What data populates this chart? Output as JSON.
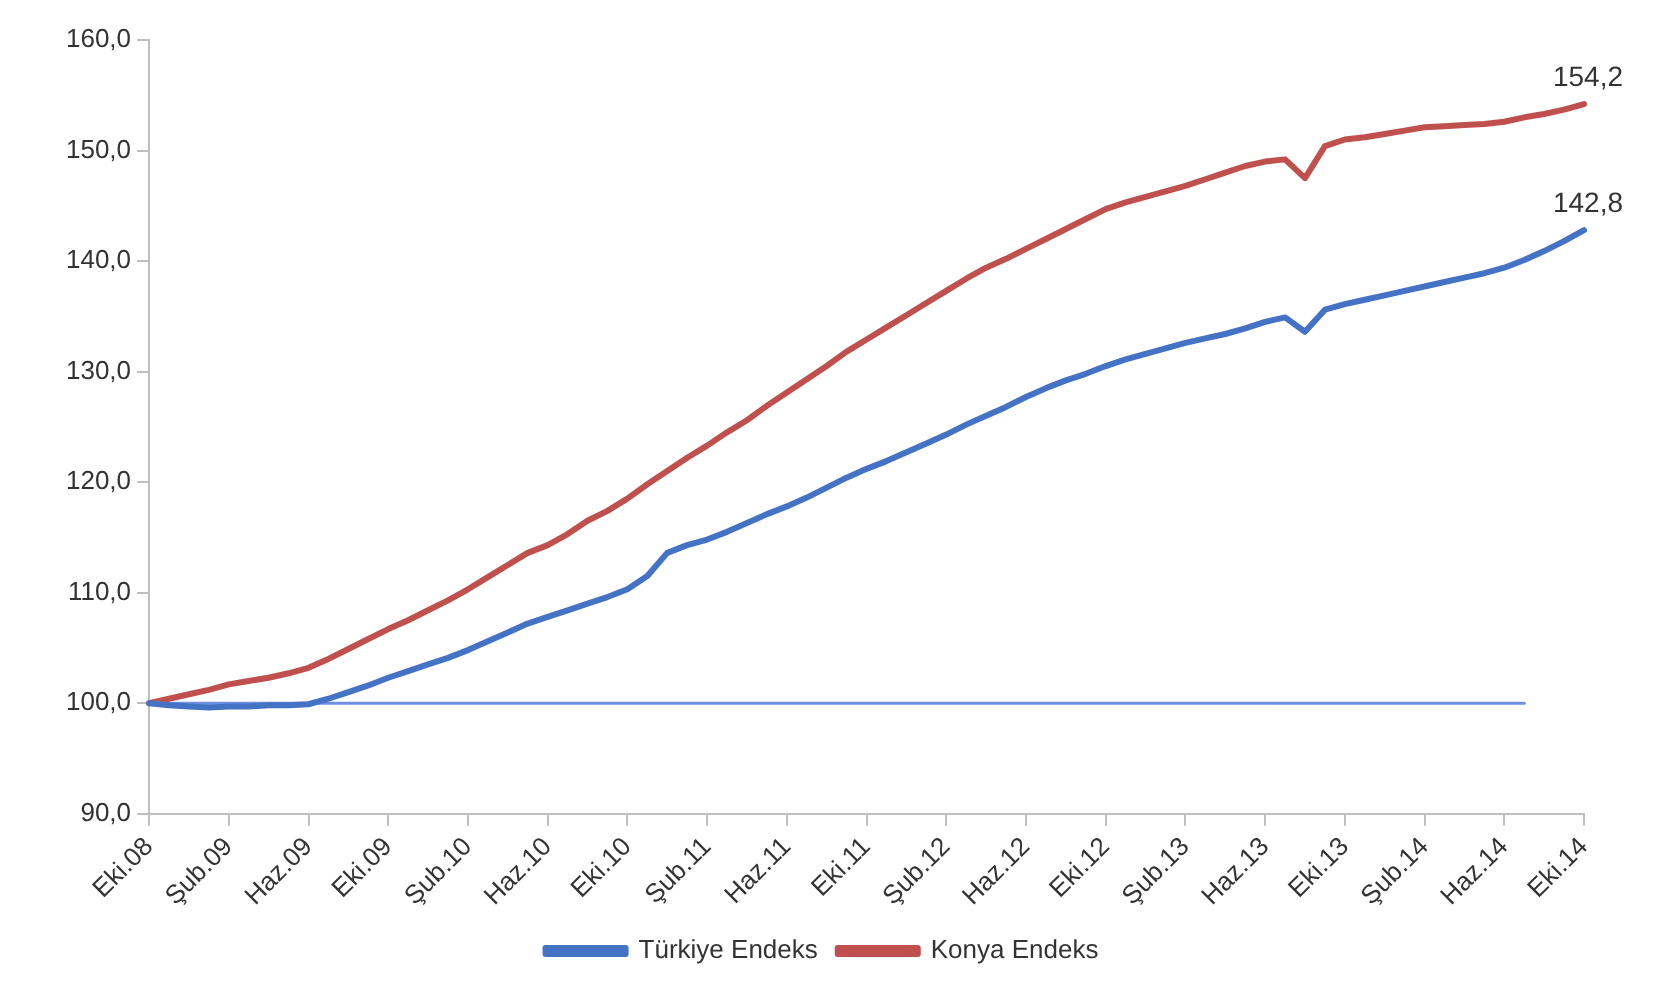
{
  "chart_data": {
    "type": "line",
    "categories": [
      "Eki.08",
      null,
      null,
      null,
      "Şub.09",
      null,
      null,
      null,
      "Haz.09",
      null,
      null,
      null,
      "Eki.09",
      null,
      null,
      null,
      "Şub.10",
      null,
      null,
      null,
      "Haz.10",
      null,
      null,
      null,
      "Eki.10",
      null,
      null,
      null,
      "Şub.11",
      null,
      null,
      null,
      "Haz.11",
      null,
      null,
      null,
      "Eki.11",
      null,
      null,
      null,
      "Şub.12",
      null,
      null,
      null,
      "Haz.12",
      null,
      null,
      null,
      "Eki.12",
      null,
      null,
      null,
      "Şub.13",
      null,
      null,
      null,
      "Haz.13",
      null,
      null,
      null,
      "Eki.13",
      null,
      null,
      null,
      "Şub.14",
      null,
      null,
      null,
      "Haz.14",
      null,
      null,
      null,
      "Eki.14"
    ],
    "series": [
      {
        "name": "Türkiye Endeks",
        "color": "#4472c4",
        "values": [
          100,
          99.8,
          99.7,
          99.6,
          99.7,
          99.7,
          99.8,
          99.8,
          99.9,
          100.4,
          101.0,
          101.6,
          102.3,
          102.9,
          103.5,
          104.1,
          104.8,
          105.6,
          106.4,
          107.2,
          107.8,
          108.4,
          109.0,
          109.6,
          110.3,
          111.5,
          113.6,
          114.3,
          114.8,
          115.5,
          116.3,
          117.1,
          117.8,
          118.6,
          119.5,
          120.4,
          121.2,
          121.9,
          122.7,
          123.5,
          124.3,
          125.2,
          126.0,
          126.8,
          127.7,
          128.5,
          129.2,
          129.8,
          130.5,
          131.1,
          131.6,
          132.1,
          132.6,
          133.0,
          133.4,
          133.9,
          134.5,
          134.9,
          133.6,
          135.6,
          136.1,
          136.5,
          136.9,
          137.3,
          137.7,
          138.1,
          138.5,
          138.9,
          139.4,
          140.1,
          140.9,
          141.8,
          142.8
        ]
      },
      {
        "name": "Konya Endeks",
        "color": "#c0504d",
        "values": [
          100,
          100.4,
          100.8,
          101.2,
          101.7,
          102.0,
          102.3,
          102.7,
          103.2,
          104.0,
          104.9,
          105.8,
          106.7,
          107.5,
          108.4,
          109.3,
          110.3,
          111.4,
          112.5,
          113.6,
          114.3,
          115.3,
          116.5,
          117.4,
          118.5,
          119.8,
          121.0,
          122.2,
          123.3,
          124.5,
          125.6,
          126.9,
          128.1,
          129.3,
          130.5,
          131.8,
          132.9,
          134.0,
          135.1,
          136.2,
          137.3,
          138.4,
          139.4,
          140.2,
          141.1,
          142.0,
          142.9,
          143.8,
          144.7,
          145.3,
          145.8,
          146.3,
          146.8,
          147.4,
          148.0,
          148.6,
          149.0,
          149.2,
          147.5,
          150.4,
          151.0,
          151.2,
          151.5,
          151.8,
          152.1,
          152.2,
          152.3,
          152.4,
          152.6,
          153.0,
          153.3,
          153.7,
          154.2
        ]
      },
      {
        "color": "#6f8fe0",
        "values": [
          100,
          100,
          100,
          100,
          100,
          100,
          100,
          100,
          100,
          100,
          100,
          100,
          100,
          100,
          100,
          100,
          100,
          100,
          100,
          100,
          100,
          100,
          100,
          100,
          100,
          100,
          100,
          100,
          100,
          100,
          100,
          100,
          100,
          100,
          100,
          100,
          100,
          100,
          100,
          100,
          100,
          100,
          100,
          100,
          100,
          100,
          100,
          100,
          100,
          100,
          100,
          100,
          100,
          100,
          100,
          100,
          100,
          100,
          100,
          100,
          100,
          100,
          100,
          100,
          100,
          100,
          100,
          100,
          100,
          100,
          null,
          null,
          null
        ]
      }
    ],
    "ylim": [
      90,
      160
    ],
    "yticks": [
      {
        "value": 90,
        "label": "90,0"
      },
      {
        "value": 100,
        "label": "100,0"
      },
      {
        "value": 110,
        "label": "110,0"
      },
      {
        "value": 120,
        "label": "120,0"
      },
      {
        "value": 130,
        "label": "130,0"
      },
      {
        "value": 140,
        "label": "140,0"
      },
      {
        "value": 150,
        "label": "150,0"
      },
      {
        "value": 160,
        "label": "160,0"
      }
    ],
    "annotations": [
      {
        "text": "154,2",
        "x": "Eki.14",
        "y": 154.2
      },
      {
        "text": "142,8",
        "x": "Eki.14",
        "y": 142.8
      }
    ],
    "grid": false,
    "legend": "bottom",
    "marker": "none",
    "line_style": "solid"
  }
}
